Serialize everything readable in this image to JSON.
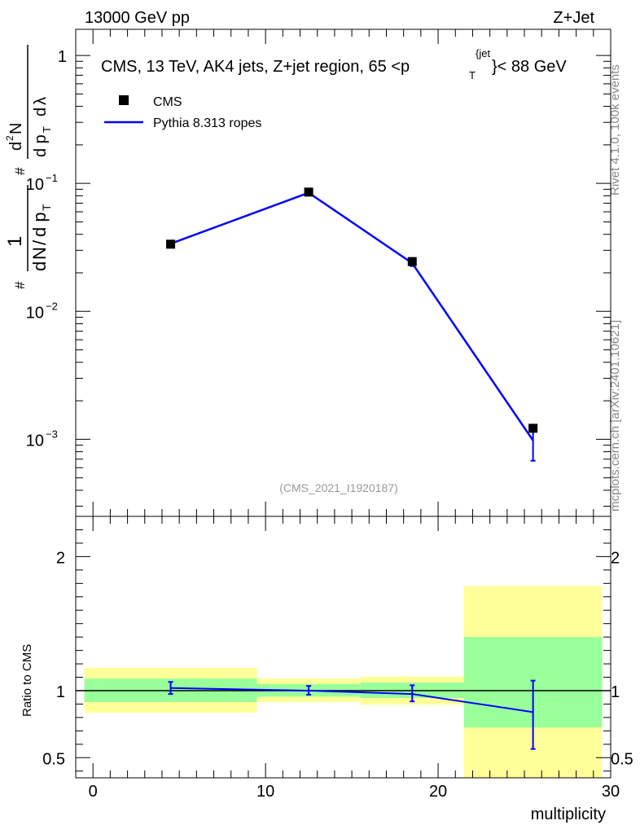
{
  "header": {
    "left": "13000 GeV pp",
    "right": "Z+Jet"
  },
  "side_labels": {
    "rivet": "Rivet 4.1.0,  100k events",
    "mcplots": "mcplots.cern.ch [arXiv:2401.10621]"
  },
  "chart_data": [
    {
      "type": "line",
      "panel": "main",
      "title": "CMS, 13 TeV, AK4 jets, Z+jet region, 65 <p_T^{jet}< 88 GeV",
      "title_parts": {
        "main": "CMS, 13 TeV, AK4 jets, Z+jet region, 65 <p",
        "sub": "T",
        "sup": "{jet",
        "tail": "}< 88 GeV"
      },
      "ylabel": "1/(dN/dp_T) d^2N/(dp_T dλ)",
      "ylabel_parts": {
        "hash": "#",
        "one": "1",
        "dN": "d",
        "N": "N",
        "slash": "/",
        "dp": "d p",
        "T": "T",
        "d2N": "d",
        "two": "2",
        "N2": "N",
        "dpT": "d p",
        "T2": "T",
        "dlambda": "d",
        "lambda": "λ"
      },
      "yscale": "log",
      "ylim": [
        0.00025,
        1.6
      ],
      "xlim": [
        -1,
        30
      ],
      "yticks": [
        {
          "value": 1,
          "label": "1",
          "exp": ""
        },
        {
          "value": 0.1,
          "label": "10",
          "exp": "−1"
        },
        {
          "value": 0.01,
          "label": "10",
          "exp": "−2"
        },
        {
          "value": 0.001,
          "label": "10",
          "exp": "−3"
        }
      ],
      "legend": [
        {
          "label": "CMS",
          "marker": "square",
          "color": "#000000"
        },
        {
          "label": "Pythia 8.313 ropes",
          "marker": "line",
          "color": "#0000ff"
        }
      ],
      "watermark": "(CMS_2021_I1920187)",
      "series": [
        {
          "name": "CMS",
          "color": "#000000",
          "x": [
            4.5,
            12.5,
            18.5,
            25.5
          ],
          "y": [
            0.0335,
            0.0855,
            0.0245,
            0.00122
          ]
        },
        {
          "name": "Pythia 8.313 ropes",
          "color": "#0000ff",
          "x": [
            4.5,
            12.5,
            18.5,
            25.5
          ],
          "y": [
            0.0338,
            0.0845,
            0.0238,
            0.00098
          ],
          "err_lo": [
            0.0331,
            0.0838,
            0.0226,
            0.00068
          ],
          "err_hi": [
            0.0345,
            0.0852,
            0.025,
            0.00128
          ]
        }
      ]
    },
    {
      "type": "line",
      "panel": "ratio",
      "ylabel": "Ratio to CMS",
      "xlabel": "multiplicity",
      "ylim": [
        0.35,
        2.3
      ],
      "xlim": [
        -1,
        30
      ],
      "yticks": [
        2,
        1,
        0.5
      ],
      "ytick_labels": [
        "2",
        "1",
        "0.5"
      ],
      "xticks": [
        0,
        10,
        20,
        30
      ],
      "xtick_labels": [
        "0",
        "10",
        "20",
        "30"
      ],
      "bins": [
        {
          "lo": -0.5,
          "hi": 9.5,
          "stat_lo": 0.915,
          "stat_hi": 1.09,
          "tot_lo": 0.835,
          "tot_hi": 1.17
        },
        {
          "lo": 9.5,
          "hi": 15.5,
          "stat_lo": 0.955,
          "stat_hi": 1.05,
          "tot_lo": 0.915,
          "tot_hi": 1.09
        },
        {
          "lo": 15.5,
          "hi": 21.5,
          "stat_lo": 0.945,
          "stat_hi": 1.06,
          "tot_lo": 0.895,
          "tot_hi": 1.105
        },
        {
          "lo": 21.5,
          "hi": 29.5,
          "stat_lo": 0.725,
          "stat_hi": 1.4,
          "tot_lo": 0.35,
          "tot_hi": 1.78
        }
      ],
      "stat_color": "#99ff99",
      "tot_color": "#ffff99",
      "series": [
        {
          "name": "Pythia 8.313 ropes",
          "color": "#0000ff",
          "x": [
            4.5,
            12.5,
            18.5,
            25.5
          ],
          "y": [
            1.02,
            1.0,
            0.975,
            0.84
          ],
          "err_lo": [
            0.975,
            0.97,
            0.92,
            0.565
          ],
          "err_hi": [
            1.065,
            1.035,
            1.04,
            1.075
          ]
        }
      ]
    }
  ]
}
